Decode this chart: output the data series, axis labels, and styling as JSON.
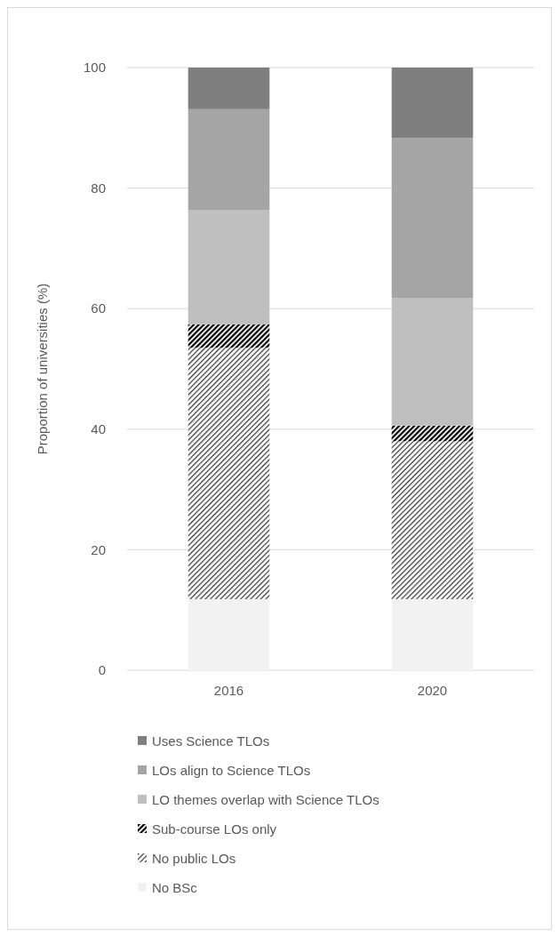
{
  "chart_data": {
    "type": "bar",
    "stacked": true,
    "ylabel": "Proportion of universities (%)",
    "categories": [
      "2016",
      "2020"
    ],
    "ylim": [
      0,
      100
    ],
    "yticks": [
      0,
      20,
      40,
      60,
      80,
      100
    ],
    "grid": "y",
    "legend": "bottom",
    "series": [
      {
        "name": "No BSc",
        "color": "#f2f2f2",
        "values": [
          11.8,
          11.8
        ]
      },
      {
        "name": "No public LOs",
        "color": "#333333",
        "values": [
          41.7,
          26.2
        ]
      },
      {
        "name": "Sub-course LOs only",
        "color": "#000000",
        "values": [
          3.9,
          2.6
        ]
      },
      {
        "name": "LO themes overlap with Science TLOs",
        "color": "#bfbfbf",
        "values": [
          18.9,
          21.2
        ]
      },
      {
        "name": "LOs align to Science TLOs",
        "color": "#a5a5a5",
        "values": [
          16.8,
          26.5
        ]
      },
      {
        "name": "Uses Science TLOs",
        "color": "#7f7f7f",
        "values": [
          6.9,
          11.7
        ]
      }
    ]
  }
}
